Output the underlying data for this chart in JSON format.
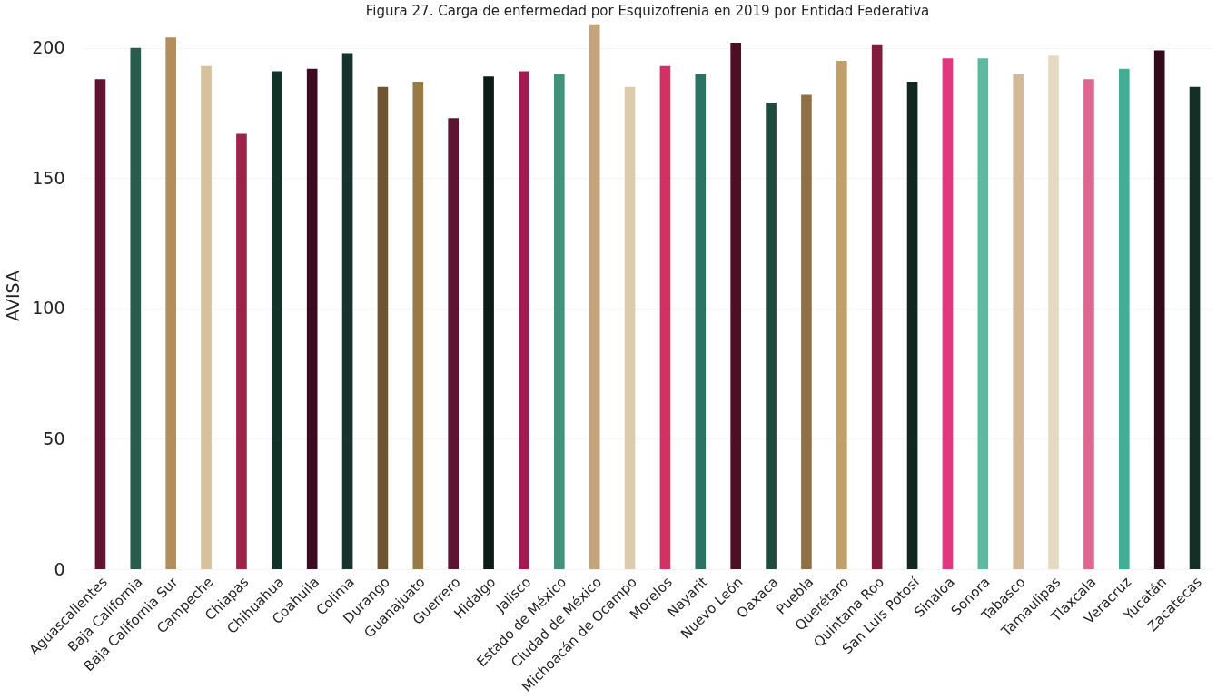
{
  "chart_data": {
    "type": "bar",
    "title": "Figura 27. Carga de enfermedad por Esquizofrenia en 2019  por Entidad Federativa",
    "ylabel": "AVISA",
    "categories": [
      "Aguascalientes",
      "Baja California",
      "Baja California Sur",
      "Campeche",
      "Chiapas",
      "Chihuahua",
      "Coahuila",
      "Colima",
      "Durango",
      "Guanajuato",
      "Guerrero",
      "Hidalgo",
      "Jalisco",
      "Estado de México",
      "Ciudad de México",
      "Michoacán de Ocampo",
      "Morelos",
      "Nayarit",
      "Nuevo León",
      "Oaxaca",
      "Puebla",
      "Querétaro",
      "Quintana Roo",
      "San Luis Potosí",
      "Sinaloa",
      "Sonora",
      "Tabasco",
      "Tamaulipas",
      "Tlaxcala",
      "Veracruz",
      "Yucatán",
      "Zacatecas"
    ],
    "values": [
      188,
      200,
      204,
      193,
      167,
      191,
      192,
      198,
      185,
      187,
      173,
      189,
      191,
      190,
      209,
      185,
      193,
      190,
      202,
      179,
      182,
      195,
      201,
      187,
      196,
      196,
      190,
      197,
      188,
      192,
      199,
      185
    ],
    "colors": [
      "#611232",
      "#285c4d",
      "#b38e5d",
      "#d6c19b",
      "#9d2449",
      "#13322b",
      "#3d0a1f",
      "#17332d",
      "#6f5434",
      "#987b44",
      "#5e1430",
      "#0c1b16",
      "#a31a53",
      "#3f937b",
      "#c4a47c",
      "#dccbad",
      "#d13163",
      "#2b7465",
      "#4e0e26",
      "#214a3e",
      "#8f6f45",
      "#c09f69",
      "#821c3c",
      "#10281f",
      "#e0377e",
      "#5fb9a1",
      "#d2b999",
      "#e5d9c1",
      "#df6690",
      "#42ae96",
      "#330a1b",
      "#142f26"
    ],
    "ylim": [
      0,
      210
    ],
    "yticks": [
      0,
      50,
      100,
      150,
      200
    ],
    "grid": "y"
  }
}
